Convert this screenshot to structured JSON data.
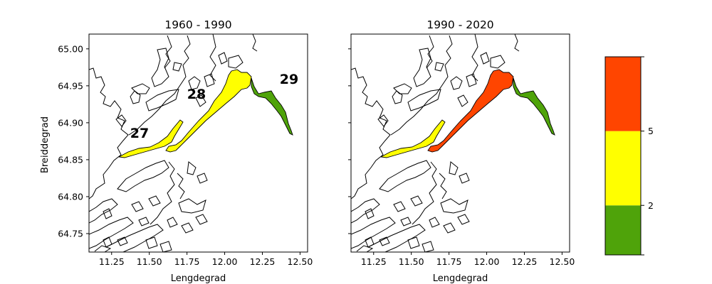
{
  "colors": {
    "green": "#4fa30a",
    "yellow": "#ffff00",
    "red": "#ff4500",
    "outline": "#000000",
    "background": "#ffffff"
  },
  "panels": [
    {
      "title": "1960 - 1990",
      "xlabel": "Lengdegrad",
      "ylabel": "Breiddegrad",
      "regions": [
        {
          "id": "27",
          "label": "27",
          "class": "yellow"
        },
        {
          "id": "28",
          "label": "28",
          "class": "yellow"
        },
        {
          "id": "29",
          "label": "29",
          "class": "green"
        }
      ]
    },
    {
      "title": "1990 - 2020",
      "xlabel": "Lengdegrad",
      "ylabel": "",
      "regions": [
        {
          "id": "27",
          "class": "yellow"
        },
        {
          "id": "28",
          "class": "red"
        },
        {
          "id": "29",
          "class": "green"
        }
      ]
    }
  ],
  "axes": {
    "xlim": [
      11.1,
      12.55
    ],
    "ylim": [
      64.725,
      65.02
    ],
    "xticks": [
      11.25,
      11.5,
      11.75,
      12.0,
      12.25,
      12.5
    ],
    "xtick_labels": [
      "11.25",
      "11.50",
      "11.75",
      "12.00",
      "12.25",
      "12.50"
    ],
    "yticks": [
      64.75,
      64.8,
      64.85,
      64.9,
      64.95,
      65.0
    ],
    "ytick_labels": [
      "64.75",
      "64.80",
      "64.85",
      "64.90",
      "64.95",
      "65.00"
    ]
  },
  "colorbar": {
    "tick_labels": [
      "2",
      "5"
    ],
    "bins": [
      {
        "from": 0,
        "to": 2,
        "color": "#4fa30a"
      },
      {
        "from": 2,
        "to": 5,
        "color": "#ffff00"
      },
      {
        "from": 5,
        "to": 8,
        "color": "#ff4500"
      }
    ]
  }
}
